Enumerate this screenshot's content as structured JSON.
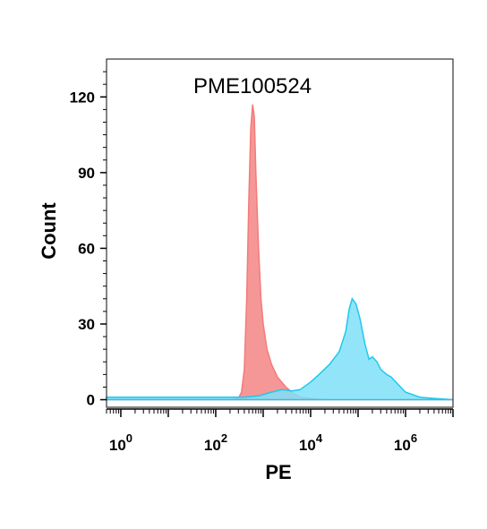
{
  "chart_data": {
    "type": "area",
    "title": "PME100524",
    "xlabel": "PE",
    "ylabel": "Count",
    "x_scale": "log",
    "xlim": [
      0.5,
      10000000
    ],
    "ylim": [
      -3,
      135
    ],
    "y_ticks": [
      0,
      30,
      60,
      90,
      120
    ],
    "y_tick_labels": [
      "0",
      "30",
      "60",
      "90",
      "120"
    ],
    "x_label_ticks": [
      {
        "value": 1,
        "base": "10",
        "exp": "0"
      },
      {
        "value": 100,
        "base": "10",
        "exp": "2"
      },
      {
        "value": 10000,
        "base": "10",
        "exp": "4"
      },
      {
        "value": 1000000,
        "base": "10",
        "exp": "6"
      }
    ],
    "grid": false,
    "series": [
      {
        "color": "#f47a7a",
        "fill": "#f58c8c",
        "points": [
          [
            0.5,
            0
          ],
          [
            200,
            0
          ],
          [
            300,
            0.5
          ],
          [
            350,
            3
          ],
          [
            400,
            12
          ],
          [
            450,
            40
          ],
          [
            500,
            80
          ],
          [
            550,
            108
          ],
          [
            600,
            117
          ],
          [
            650,
            112
          ],
          [
            700,
            90
          ],
          [
            800,
            60
          ],
          [
            900,
            40
          ],
          [
            1000,
            30
          ],
          [
            1200,
            20
          ],
          [
            1500,
            14
          ],
          [
            2000,
            9
          ],
          [
            3000,
            5
          ],
          [
            4000,
            3
          ],
          [
            6000,
            1
          ],
          [
            10000,
            0.5
          ],
          [
            20000,
            0
          ],
          [
            10000000,
            0
          ]
        ]
      },
      {
        "color": "#1ec8ef",
        "fill": "#7fe0f8",
        "points": [
          [
            0.5,
            1
          ],
          [
            100,
            1
          ],
          [
            400,
            1
          ],
          [
            800,
            1.5
          ],
          [
            1500,
            3
          ],
          [
            2500,
            4
          ],
          [
            4000,
            3.5
          ],
          [
            6000,
            4
          ],
          [
            10000,
            7
          ],
          [
            15000,
            10
          ],
          [
            25000,
            14
          ],
          [
            40000,
            19
          ],
          [
            55000,
            27
          ],
          [
            65000,
            36
          ],
          [
            75000,
            40
          ],
          [
            90000,
            38
          ],
          [
            110000,
            32
          ],
          [
            140000,
            22
          ],
          [
            170000,
            16
          ],
          [
            200000,
            17
          ],
          [
            250000,
            15
          ],
          [
            300000,
            12
          ],
          [
            400000,
            10
          ],
          [
            500000,
            9
          ],
          [
            700000,
            6
          ],
          [
            1000000,
            3
          ],
          [
            2000000,
            1
          ],
          [
            4000000,
            0.5
          ],
          [
            10000000,
            0
          ]
        ]
      }
    ]
  }
}
